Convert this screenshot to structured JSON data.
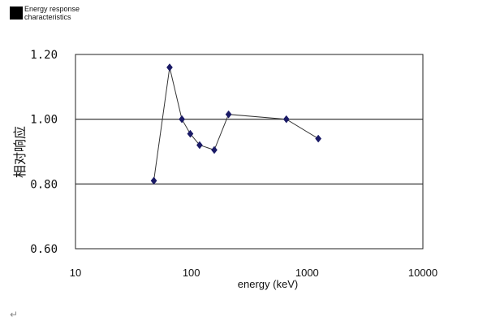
{
  "header": {
    "caption": "Energy response characteristics"
  },
  "paragraph_mark": "↵",
  "chart_data": {
    "type": "line",
    "xlabel": "energy (keV)",
    "ylabel": "相对响应",
    "xscale": "log",
    "xlim": [
      10,
      10000
    ],
    "ylim": [
      0.6,
      1.2
    ],
    "x_ticks": [
      10,
      100,
      1000,
      10000
    ],
    "x_tick_labels": [
      "10",
      "100",
      "1000",
      "10000"
    ],
    "y_ticks": [
      0.6,
      0.8,
      1.0,
      1.2
    ],
    "y_tick_labels": [
      "0.60",
      "0.80",
      "1.00",
      "1.20"
    ],
    "horizontal_gridlines": [
      0.8,
      1.0
    ],
    "grid": true,
    "legend": "none",
    "marker": "diamond",
    "color": "#1a1a66",
    "series": [
      {
        "x": [
          47.5,
          65,
          83,
          98,
          118,
          158,
          210,
          662,
          1250
        ],
        "y": [
          0.81,
          1.16,
          1.0,
          0.955,
          0.92,
          0.905,
          1.015,
          1.0,
          0.94
        ]
      }
    ]
  }
}
